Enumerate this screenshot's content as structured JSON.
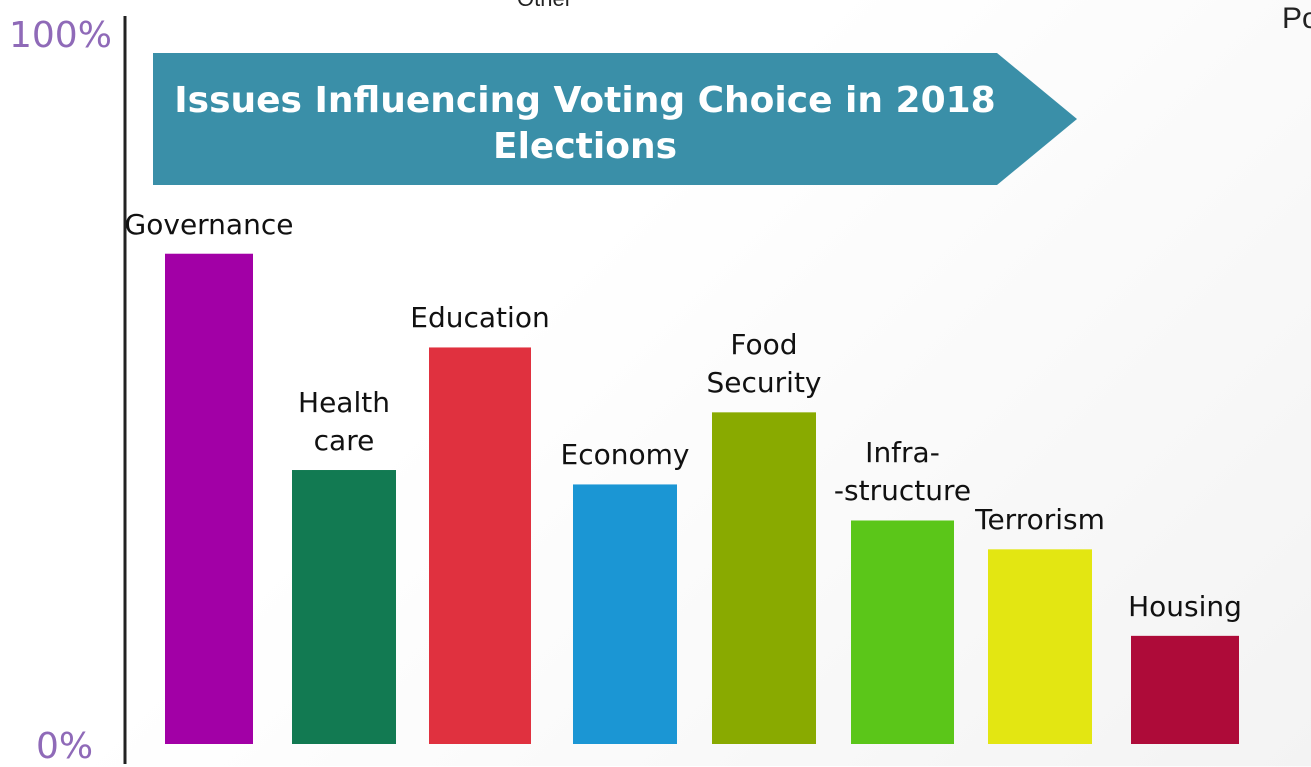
{
  "chart_data": {
    "type": "bar",
    "title": "Issues Influencing Voting Choice in 2018 Elections",
    "categories": [
      "Governance",
      "Health\ncare",
      "Education",
      "Economy",
      "Food\nSecurity",
      "Infra-\n-structure",
      "Terrorism",
      "Housing"
    ],
    "values": [
      68,
      38,
      55,
      36,
      46,
      31,
      27,
      15
    ],
    "colors": [
      "#a200a6",
      "#127a52",
      "#e0313f",
      "#1b96d4",
      "#89aa00",
      "#5bc619",
      "#e3e612",
      "#ae0b39"
    ],
    "ylim": [
      0,
      100
    ],
    "ytick_labels": [
      "0%",
      "100%"
    ],
    "xlabel": "",
    "ylabel": "",
    "banner_color": "#3a8fa8"
  },
  "clipped_text": {
    "top": "Other",
    "right": "Po"
  }
}
